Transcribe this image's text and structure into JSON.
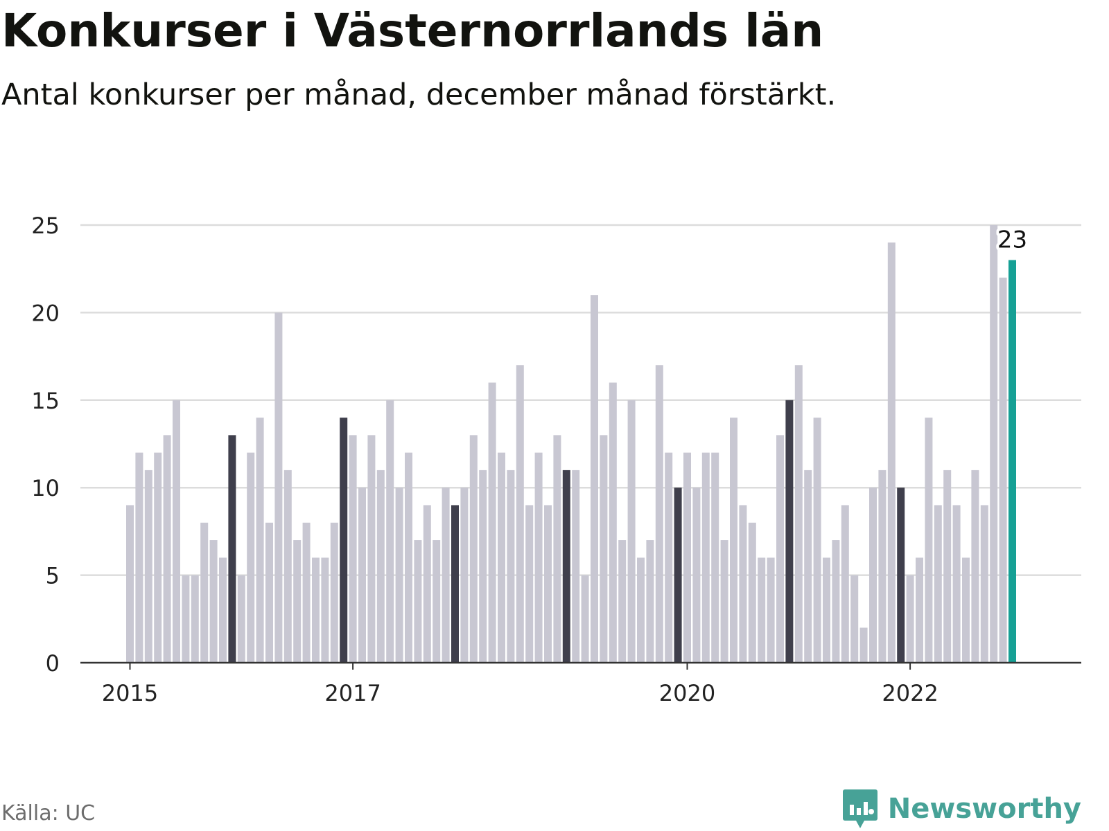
{
  "header": {
    "title": "Konkurser i Västernorrlands län",
    "subtitle": "Antal konkurser per månad, december månad förstärkt."
  },
  "footer": {
    "source": "Källa: UC",
    "brand": "Newsworthy"
  },
  "colors": {
    "bar": "#c8c7d2",
    "december_bar": "#3f3f4c",
    "latest_bar": "#16a095",
    "grid": "#dcdcdc",
    "axis": "#333333",
    "brand": "#47a297"
  },
  "chart_data": {
    "type": "bar",
    "start_year": 2015,
    "start_month": 1,
    "values": [
      9,
      12,
      11,
      12,
      13,
      15,
      5,
      5,
      8,
      7,
      6,
      13,
      5,
      12,
      14,
      8,
      20,
      11,
      7,
      8,
      6,
      6,
      8,
      14,
      13,
      10,
      13,
      11,
      15,
      10,
      12,
      7,
      9,
      7,
      10,
      9,
      10,
      13,
      11,
      16,
      12,
      11,
      17,
      9,
      12,
      9,
      13,
      11,
      11,
      5,
      21,
      13,
      16,
      7,
      15,
      6,
      7,
      17,
      12,
      10,
      12,
      10,
      12,
      12,
      7,
      14,
      9,
      8,
      6,
      6,
      13,
      15,
      17,
      11,
      14,
      6,
      7,
      9,
      5,
      2,
      10,
      11,
      24,
      10,
      5,
      6,
      14,
      9,
      11,
      9,
      6,
      11,
      9,
      25,
      22,
      23
    ],
    "highlight": "december",
    "latest_label": "23",
    "ylim": [
      0,
      25
    ],
    "yticks": [
      0,
      5,
      10,
      15,
      20,
      25
    ],
    "xticks": [
      "2015",
      "2017",
      "2020",
      "2022"
    ],
    "grid": true
  }
}
